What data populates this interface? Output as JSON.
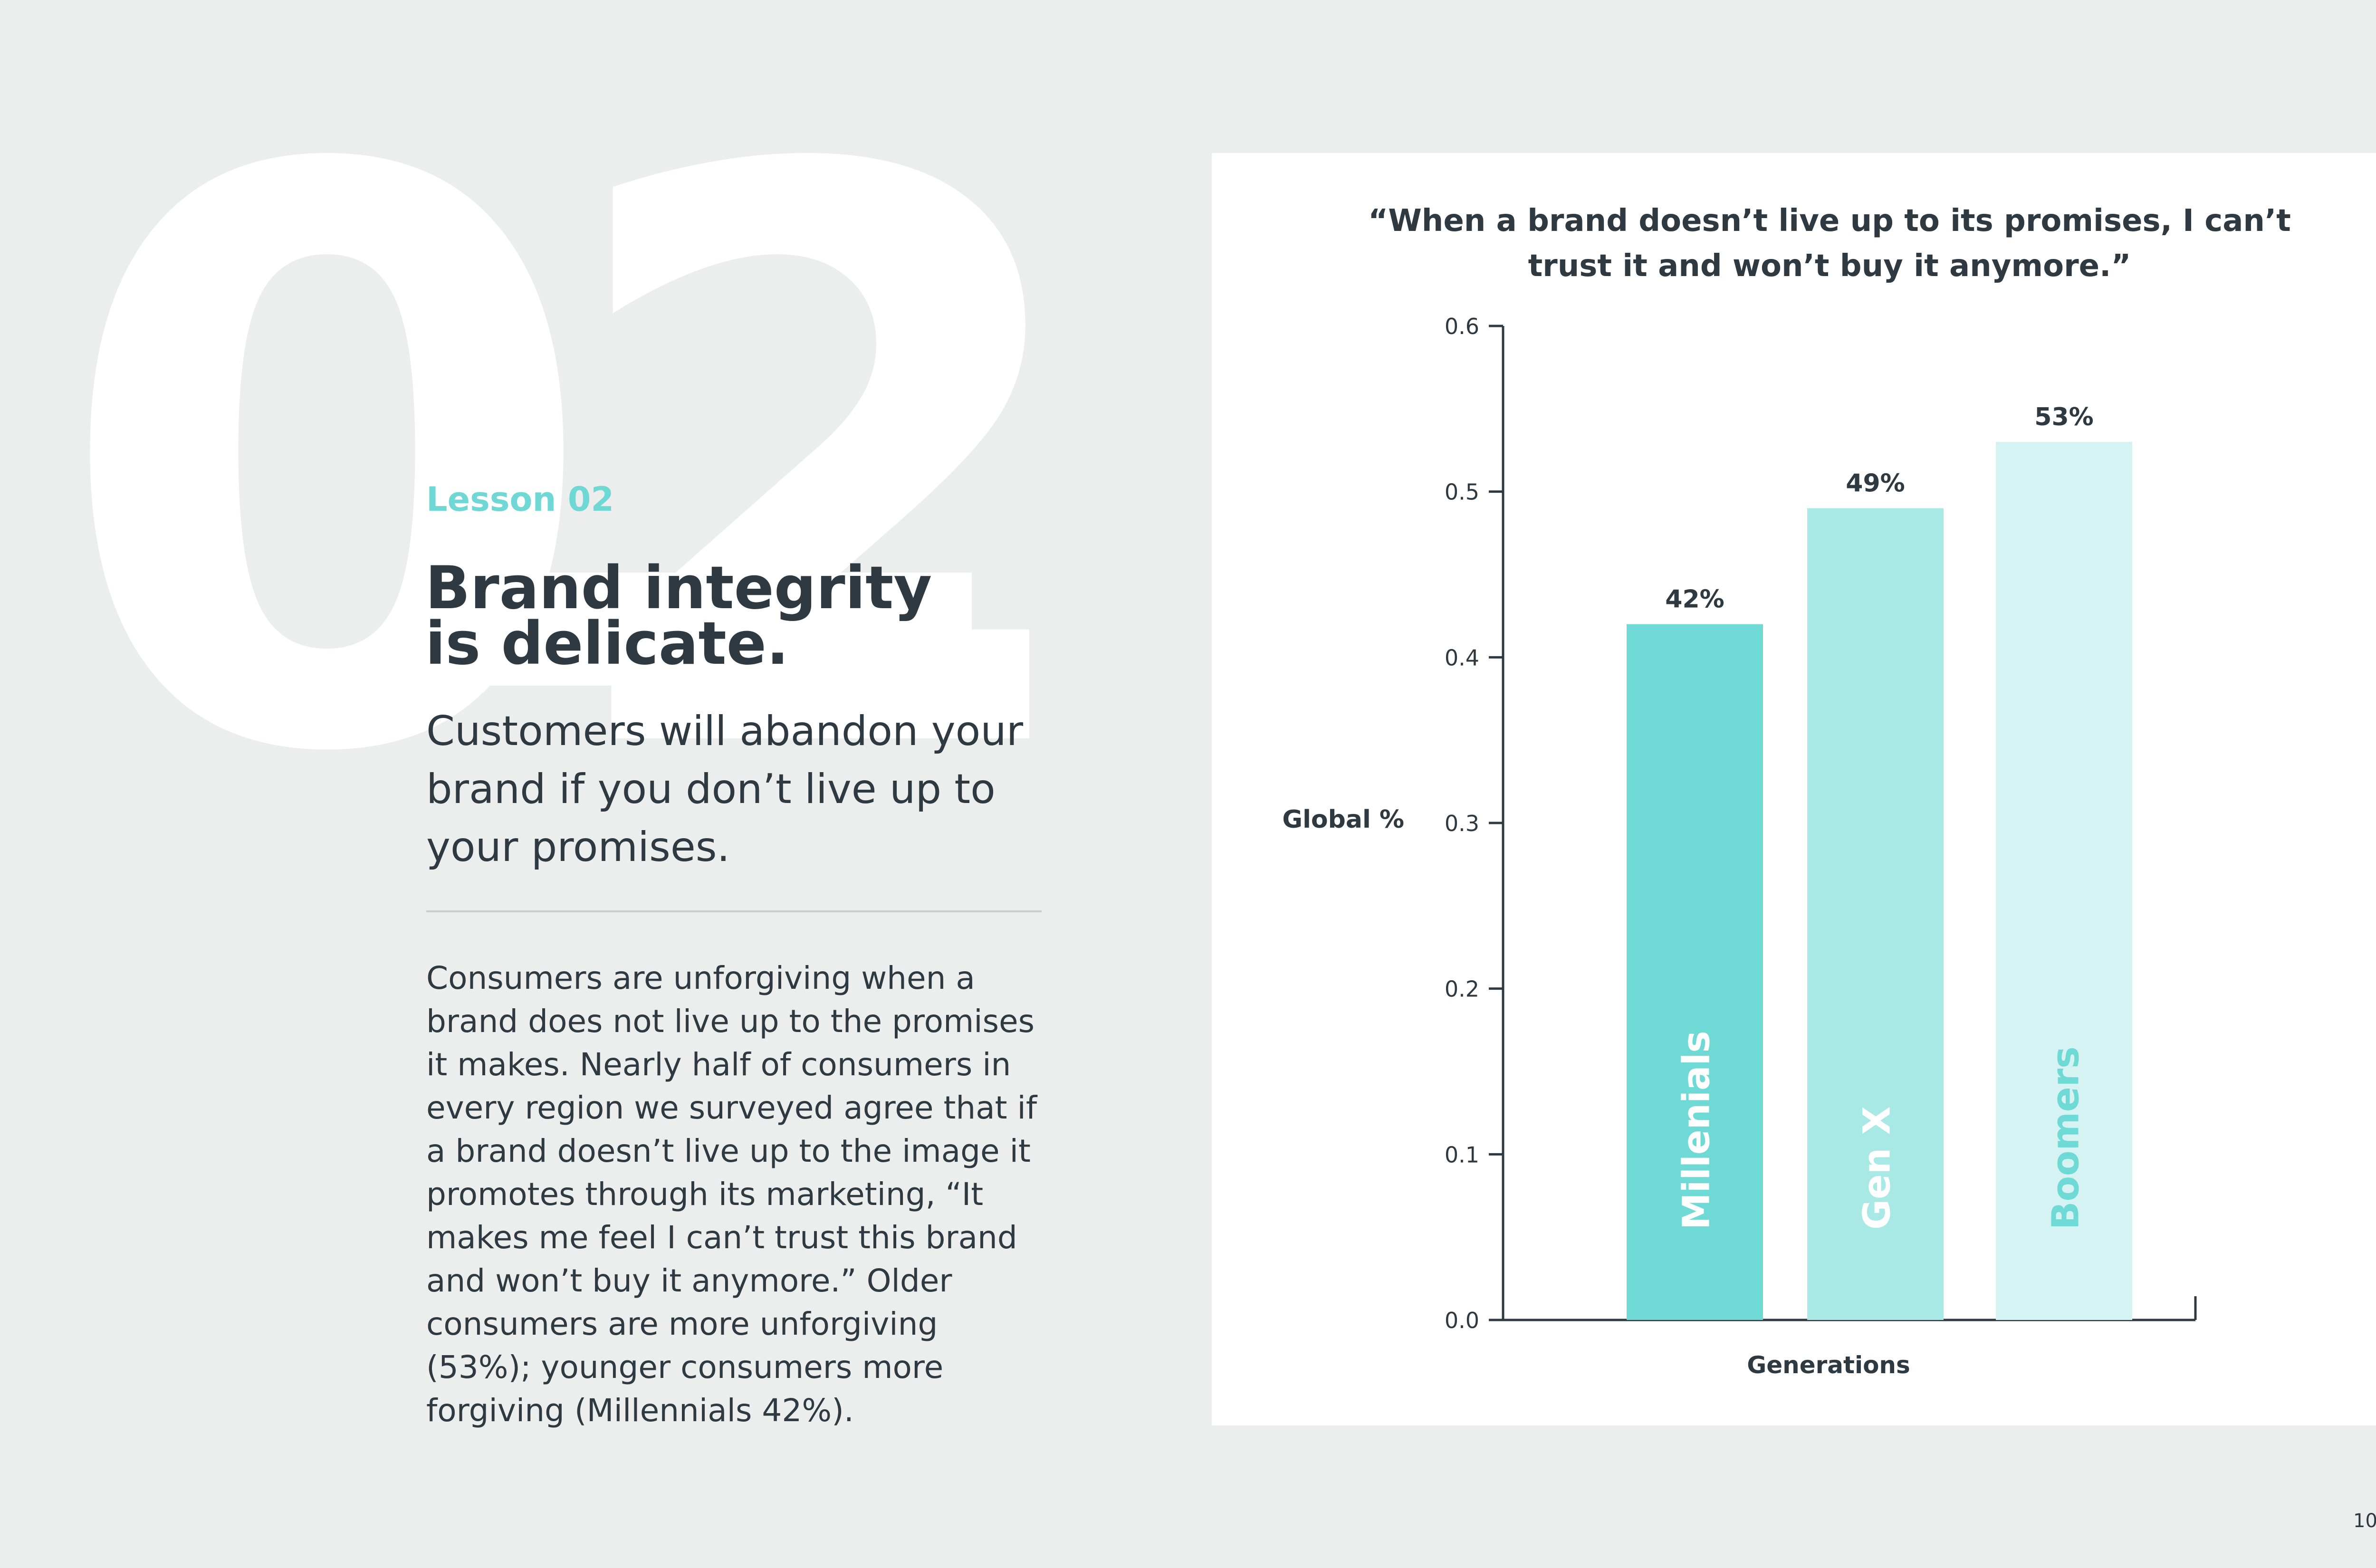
{
  "lesson": {
    "number": "02",
    "label": "Lesson 02",
    "title_line1": "Brand integrity",
    "title_line2": "is delicate.",
    "subtitle": "Customers will abandon your brand if you don’t live up to your promises.",
    "body": "Consumers are unforgiving when a brand does not live up to the promises it makes. Nearly half of consumers in every region we surveyed agree that if a brand doesn’t live up to the image it promotes through its marketing, “It makes me feel I can’t trust this brand and won’t buy it anymore.” Older consumers are more unforgiving (53%); younger consumers more forgiving (Millennials 42%)."
  },
  "colors": {
    "accent": "#6fd8d5",
    "text": "#2e3942",
    "background": "#eceeed"
  },
  "chart_data": {
    "type": "bar",
    "title_line1": "“When a brand doesn’t live up to its promises, I can’t",
    "title_line2": "trust it and won’t buy it anymore.”",
    "categories": [
      "Millenials",
      "Gen X",
      "Boomers"
    ],
    "values": [
      0.42,
      0.49,
      0.53
    ],
    "data_labels": [
      "42%",
      "49%",
      "53%"
    ],
    "bar_colors": [
      "#6fd9d6",
      "#a8e8e5",
      "#d6f3f3"
    ],
    "category_label_colors": [
      "#ffffff",
      "#ffffff",
      "#6fd9d6"
    ],
    "xlabel": "Generations",
    "ylabel": "Global %",
    "ylim": [
      0,
      0.6
    ],
    "yticks": [
      "0.0",
      "0.1",
      "0.2",
      "0.3",
      "0.4",
      "0.5",
      "0.6"
    ]
  },
  "page": {
    "number": "10"
  }
}
